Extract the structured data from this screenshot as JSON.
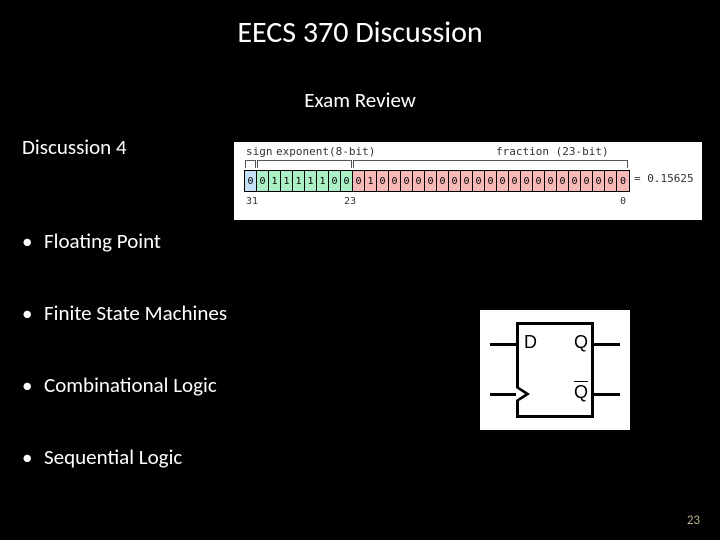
{
  "slide": {
    "title": "EECS 370 Discussion",
    "subtitle": "Exam Review",
    "section_label": "Discussion 4",
    "page_number": "23",
    "background_color": "#000000",
    "text_color": "#ffffff",
    "page_number_color": "#b8a98a"
  },
  "topics": [
    "Floating Point",
    "Finite State Machines",
    "Combinational Logic",
    "Sequential Logic"
  ],
  "float_diagram": {
    "labels": {
      "sign": "sign",
      "exponent": "exponent(8-bit)",
      "fraction": "fraction (23-bit)"
    },
    "bits_sign": [
      "0"
    ],
    "bits_exp": [
      "0",
      "1",
      "1",
      "1",
      "1",
      "1",
      "0",
      "0"
    ],
    "bits_frac": [
      "0",
      "1",
      "0",
      "0",
      "0",
      "0",
      "0",
      "0",
      "0",
      "0",
      "0",
      "0",
      "0",
      "0",
      "0",
      "0",
      "0",
      "0",
      "0",
      "0",
      "0",
      "0",
      "0"
    ],
    "result": "= 0.15625",
    "indices": {
      "hi": "31",
      "mid": "23",
      "lo": "0"
    },
    "colors": {
      "sign_bg": "#c4e2f5",
      "exp_bg": "#aaf0c4",
      "frac_bg": "#f8b8b8",
      "diagram_bg": "#ffffff",
      "text": "#333333",
      "border": "#000000"
    }
  },
  "dff_diagram": {
    "labels": {
      "D": "D",
      "Q": "Q",
      "Qbar": "Q"
    },
    "colors": {
      "bg": "#ffffff",
      "stroke": "#000000"
    },
    "stroke_width": 3
  }
}
